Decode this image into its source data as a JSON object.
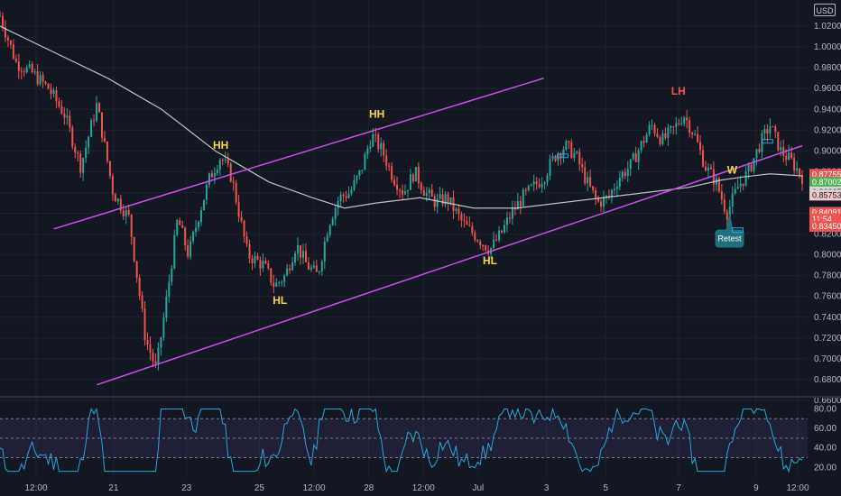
{
  "currency_label": "USD",
  "colors": {
    "background": "#131722",
    "grid": "#1e222d",
    "candle_up": "#26a69a",
    "candle_down": "#ef5350",
    "channel": "#c84fe6",
    "moving_average": "#d1d4dc",
    "rsi": "#2ca5d4",
    "rsi_band": "#7e57c2",
    "annotation_yellow": "#f5d742",
    "annotation_red": "#ef5350",
    "retest": "#1f6f7d"
  },
  "chart_data": {
    "type": "candlestick",
    "ylim": [
      0.66,
      1.04
    ],
    "y_ticks": [
      1.02,
      1.0,
      0.98,
      0.96,
      0.94,
      0.92,
      0.9,
      0.88,
      0.86,
      0.84,
      0.82,
      0.8,
      0.78,
      0.76,
      0.74,
      0.72,
      0.7,
      0.68,
      0.66
    ],
    "y_tick_labels": [
      "1.02000",
      "1.00000",
      "0.98000",
      "0.96000",
      "0.94000",
      "0.92000",
      "0.90000",
      "0.88000",
      "0.86000",
      "0.84000",
      "0.82000",
      "0.80000",
      "0.78000",
      "0.76000",
      "0.74000",
      "0.72000",
      "0.70000",
      "0.68000",
      "0.66000"
    ],
    "x_tick_labels": [
      "12:00",
      "21",
      "23",
      "25",
      "12:00",
      "28",
      "12:00",
      "Jul",
      "3",
      "5",
      "7",
      "9",
      "12:00"
    ],
    "close_path": [
      [
        0,
        1.03
      ],
      [
        3,
        0.985
      ],
      [
        6,
        0.975
      ],
      [
        9,
        0.96
      ],
      [
        12,
        0.935
      ],
      [
        15,
        0.885
      ],
      [
        18,
        0.945
      ],
      [
        21,
        0.86
      ],
      [
        24,
        0.835
      ],
      [
        27,
        0.72
      ],
      [
        29,
        0.69
      ],
      [
        31,
        0.76
      ],
      [
        33,
        0.835
      ],
      [
        35,
        0.8
      ],
      [
        37,
        0.84
      ],
      [
        39,
        0.875
      ],
      [
        41,
        0.895
      ],
      [
        43,
        0.875
      ],
      [
        46,
        0.8
      ],
      [
        49,
        0.79
      ],
      [
        51,
        0.77
      ],
      [
        53,
        0.78
      ],
      [
        55,
        0.81
      ],
      [
        57,
        0.79
      ],
      [
        59,
        0.78
      ],
      [
        61,
        0.83
      ],
      [
        63,
        0.855
      ],
      [
        65,
        0.86
      ],
      [
        67,
        0.88
      ],
      [
        69,
        0.915
      ],
      [
        71,
        0.9
      ],
      [
        73,
        0.875
      ],
      [
        75,
        0.86
      ],
      [
        77,
        0.88
      ],
      [
        79,
        0.86
      ],
      [
        81,
        0.85
      ],
      [
        83,
        0.855
      ],
      [
        86,
        0.83
      ],
      [
        89,
        0.815
      ],
      [
        91,
        0.805
      ],
      [
        93,
        0.82
      ],
      [
        95,
        0.84
      ],
      [
        97,
        0.855
      ],
      [
        99,
        0.865
      ],
      [
        101,
        0.875
      ],
      [
        103,
        0.895
      ],
      [
        105,
        0.905
      ],
      [
        107,
        0.895
      ],
      [
        109,
        0.87
      ],
      [
        111,
        0.85
      ],
      [
        113,
        0.855
      ],
      [
        115,
        0.875
      ],
      [
        117,
        0.885
      ],
      [
        119,
        0.905
      ],
      [
        121,
        0.925
      ],
      [
        123,
        0.91
      ],
      [
        125,
        0.92
      ],
      [
        127,
        0.935
      ],
      [
        129,
        0.915
      ],
      [
        131,
        0.885
      ],
      [
        133,
        0.87
      ],
      [
        135,
        0.84
      ],
      [
        137,
        0.865
      ],
      [
        139,
        0.88
      ],
      [
        141,
        0.905
      ],
      [
        143,
        0.925
      ],
      [
        145,
        0.9
      ],
      [
        147,
        0.89
      ],
      [
        149,
        0.875
      ]
    ],
    "moving_average_path": [
      [
        0,
        1.02
      ],
      [
        10,
        0.995
      ],
      [
        20,
        0.97
      ],
      [
        30,
        0.94
      ],
      [
        40,
        0.9
      ],
      [
        50,
        0.87
      ],
      [
        58,
        0.855
      ],
      [
        64,
        0.845
      ],
      [
        70,
        0.85
      ],
      [
        78,
        0.855
      ],
      [
        88,
        0.845
      ],
      [
        96,
        0.845
      ],
      [
        104,
        0.85
      ],
      [
        112,
        0.855
      ],
      [
        120,
        0.86
      ],
      [
        128,
        0.865
      ],
      [
        134,
        0.872
      ],
      [
        138,
        0.875
      ],
      [
        143,
        0.878
      ],
      [
        149,
        0.876
      ]
    ],
    "channel_upper": [
      [
        10,
        0.825
      ],
      [
        101,
        0.97
      ]
    ],
    "channel_lower": [
      [
        18,
        0.675
      ],
      [
        149,
        0.905
      ]
    ],
    "annotations": [
      {
        "text": "HH",
        "color": "yellow",
        "x": 41,
        "y": 0.902
      },
      {
        "text": "HH",
        "color": "yellow",
        "x": 70,
        "y": 0.932
      },
      {
        "text": "HL",
        "color": "yellow",
        "x": 52,
        "y": 0.753
      },
      {
        "text": "HL",
        "color": "yellow",
        "x": 91,
        "y": 0.791
      },
      {
        "text": "LH",
        "color": "red",
        "x": 126,
        "y": 0.954
      },
      {
        "text": "W",
        "color": "yellow",
        "x": 136,
        "y": 0.878
      }
    ],
    "retest_label": "Retest",
    "price_badges": [
      {
        "label": "0.87755",
        "price": 0.8775,
        "bg": "#ef5350",
        "fg": "light"
      },
      {
        "label": "0.87002",
        "price": 0.87,
        "bg": "#4caf50",
        "fg": "light"
      },
      {
        "label": "0.86065",
        "price": 0.8606,
        "bg": "#d1d4dc",
        "fg": "dark"
      },
      {
        "label": "0.85753",
        "price": 0.8575,
        "bg": "#f0c8c8",
        "fg": "dark"
      },
      {
        "label": "0.84091",
        "price": 0.8409,
        "bg": "#ef5350",
        "fg": "light"
      },
      {
        "label": "11:54",
        "price": 0.8345,
        "bg": "#ef5350",
        "fg": "light"
      },
      {
        "label": "0.83450",
        "price": 0.8275,
        "bg": "#ef5350",
        "fg": "light"
      }
    ],
    "rsi": {
      "ylim": [
        12,
        86
      ],
      "y_tick_labels": [
        "80.00",
        "60.00",
        "40.00",
        "20.00"
      ],
      "y_ticks": [
        80,
        60,
        40,
        20
      ],
      "upper_band": 70,
      "mid_band": 50,
      "lower_band": 30
    }
  }
}
